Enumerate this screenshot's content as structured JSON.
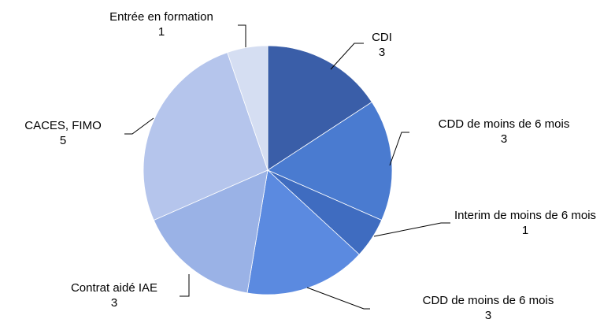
{
  "chart_data": {
    "type": "pie",
    "categories": [
      "CDI",
      "CDD de moins de 6 mois",
      "Interim de moins de 6 mois",
      "CDD de moins de 6 mois",
      "Contrat aidé IAE",
      "CACES, FIMO",
      "Entrée en formation"
    ],
    "values": [
      3,
      3,
      1,
      3,
      3,
      5,
      1
    ],
    "colors": [
      "#3a5ea8",
      "#4a7bd0",
      "#3f6cc0",
      "#5b8ae0",
      "#9ab2e6",
      "#b5c5ec",
      "#d5def2"
    ]
  }
}
